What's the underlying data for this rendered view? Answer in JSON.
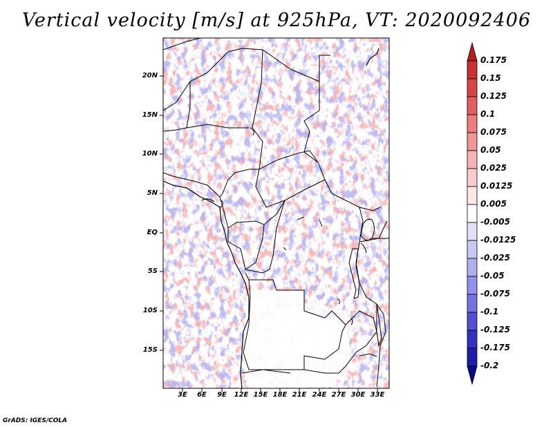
{
  "title": "Vertical velocity [m/s] at 925hPa, VT: 2020092406",
  "credit": "GrADS: IGES/COLA",
  "lat_labels": [
    "20N",
    "15N",
    "10N",
    "5N",
    "EQ",
    "5S",
    "10S",
    "15S"
  ],
  "lon_labels": [
    "3E",
    "6E",
    "9E",
    "12E",
    "15E",
    "18E",
    "21E",
    "24E",
    "27E",
    "30E",
    "33E"
  ],
  "colorbar": {
    "labels": [
      "0.175",
      "0.15",
      "0.125",
      "0.1",
      "0.075",
      "0.05",
      "0.025",
      "0.0125",
      "0.005",
      "-0.005",
      "-0.0125",
      "-0.025",
      "-0.05",
      "-0.075",
      "-0.1",
      "-0.125",
      "-0.175",
      "-0.2"
    ],
    "colors": [
      "#b41e1e",
      "#c83232",
      "#d74646",
      "#e15f5f",
      "#eb7d7d",
      "#f09696",
      "#f5b4b4",
      "#f9cdcd",
      "#fce6e6",
      "#ffffff",
      "#e1e1fa",
      "#c8c8f5",
      "#afaff0",
      "#9191eb",
      "#7373e1",
      "#5050d2",
      "#3232be",
      "#1e1eaa",
      "#0a0a8c"
    ]
  }
}
